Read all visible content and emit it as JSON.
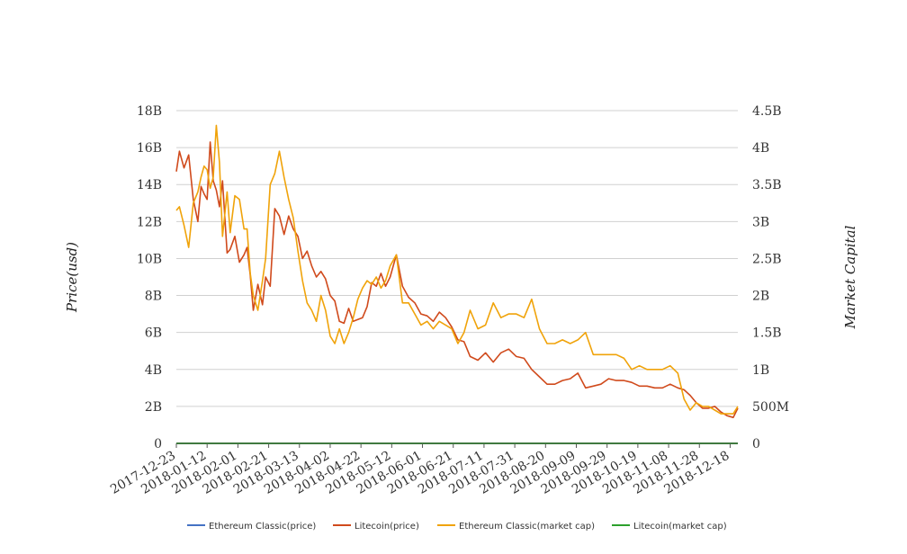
{
  "chart_data": {
    "type": "line",
    "y_left": {
      "label": "Price(usd)",
      "ylim": [
        0,
        18000000000
      ],
      "ticks": [
        {
          "value": 0,
          "label": "0"
        },
        {
          "value": 2000000000,
          "label": "2B"
        },
        {
          "value": 4000000000,
          "label": "4B"
        },
        {
          "value": 6000000000,
          "label": "6B"
        },
        {
          "value": 8000000000,
          "label": "8B"
        },
        {
          "value": 10000000000,
          "label": "10B"
        },
        {
          "value": 12000000000,
          "label": "12B"
        },
        {
          "value": 14000000000,
          "label": "14B"
        },
        {
          "value": 16000000000,
          "label": "16B"
        },
        {
          "value": 18000000000,
          "label": "18B"
        }
      ]
    },
    "y_right": {
      "label": "Market Capital",
      "ylim": [
        0,
        4500000000
      ],
      "ticks": [
        {
          "value": 0,
          "label": "0"
        },
        {
          "value": 500000000,
          "label": "500M"
        },
        {
          "value": 1000000000,
          "label": "1B"
        },
        {
          "value": 1500000000,
          "label": "1.5B"
        },
        {
          "value": 2000000000,
          "label": "2B"
        },
        {
          "value": 2500000000,
          "label": "2.5B"
        },
        {
          "value": 3000000000,
          "label": "3B"
        },
        {
          "value": 3500000000,
          "label": "3.5B"
        },
        {
          "value": 4000000000,
          "label": "4B"
        },
        {
          "value": 4500000000,
          "label": "4.5B"
        }
      ]
    },
    "x_axis": {
      "range": [
        "2017-12-23",
        "2018-12-23"
      ],
      "tick_labels": [
        "2017-12-23",
        "2018-01-12",
        "2018-02-01",
        "2018-02-21",
        "2018-03-13",
        "2018-04-02",
        "2018-04-22",
        "2018-05-12",
        "2018-06-01",
        "2018-06-21",
        "2018-07-11",
        "2018-07-31",
        "2018-08-20",
        "2018-09-09",
        "2018-09-29",
        "2018-10-19",
        "2018-11-08",
        "2018-11-28",
        "2018-12-18"
      ]
    },
    "grid": true,
    "legend_position": "bottom",
    "series": [
      {
        "name": "Ethereum Classic(price)",
        "axis": "left",
        "color": "#4472c4",
        "x": [
          "2017-12-23",
          "2018-12-23"
        ],
        "y": [
          28,
          6
        ]
      },
      {
        "name": "Litecoin(price)",
        "axis": "left",
        "color": "#d04a1c",
        "x": [
          "2017-12-23",
          "2017-12-25",
          "2017-12-28",
          "2017-12-31",
          "2018-01-03",
          "2018-01-06",
          "2018-01-08",
          "2018-01-10",
          "2018-01-12",
          "2018-01-14",
          "2018-01-16",
          "2018-01-18",
          "2018-01-20",
          "2018-01-22",
          "2018-01-25",
          "2018-01-27",
          "2018-01-30",
          "2018-02-02",
          "2018-02-05",
          "2018-02-07",
          "2018-02-09",
          "2018-02-11",
          "2018-02-14",
          "2018-02-17",
          "2018-02-19",
          "2018-02-22",
          "2018-02-25",
          "2018-02-28",
          "2018-03-03",
          "2018-03-06",
          "2018-03-09",
          "2018-03-12",
          "2018-03-15",
          "2018-03-18",
          "2018-03-21",
          "2018-03-24",
          "2018-03-27",
          "2018-03-30",
          "2018-04-02",
          "2018-04-05",
          "2018-04-08",
          "2018-04-11",
          "2018-04-14",
          "2018-04-17",
          "2018-04-20",
          "2018-04-23",
          "2018-04-26",
          "2018-04-29",
          "2018-05-02",
          "2018-05-05",
          "2018-05-08",
          "2018-05-11",
          "2018-05-15",
          "2018-05-19",
          "2018-05-23",
          "2018-05-27",
          "2018-05-31",
          "2018-06-04",
          "2018-06-08",
          "2018-06-12",
          "2018-06-16",
          "2018-06-20",
          "2018-06-24",
          "2018-06-28",
          "2018-07-02",
          "2018-07-07",
          "2018-07-12",
          "2018-07-17",
          "2018-07-22",
          "2018-07-27",
          "2018-08-01",
          "2018-08-06",
          "2018-08-11",
          "2018-08-16",
          "2018-08-21",
          "2018-08-26",
          "2018-08-31",
          "2018-09-05",
          "2018-09-10",
          "2018-09-15",
          "2018-09-20",
          "2018-09-25",
          "2018-09-30",
          "2018-10-05",
          "2018-10-10",
          "2018-10-15",
          "2018-10-20",
          "2018-10-25",
          "2018-10-30",
          "2018-11-04",
          "2018-11-09",
          "2018-11-14",
          "2018-11-18",
          "2018-11-22",
          "2018-11-26",
          "2018-11-30",
          "2018-12-04",
          "2018-12-08",
          "2018-12-12",
          "2018-12-16",
          "2018-12-20",
          "2018-12-23"
        ],
        "y": [
          14700000000,
          15800000000,
          14900000000,
          15600000000,
          13200000000,
          12000000000,
          13900000000,
          13500000000,
          13200000000,
          16300000000,
          14200000000,
          13700000000,
          12800000000,
          14200000000,
          10300000000,
          10500000000,
          11200000000,
          9800000000,
          10200000000,
          10600000000,
          9100000000,
          7200000000,
          8600000000,
          7500000000,
          9000000000,
          8500000000,
          12700000000,
          12300000000,
          11300000000,
          12300000000,
          11600000000,
          11200000000,
          10000000000,
          10400000000,
          9600000000,
          9000000000,
          9300000000,
          8900000000,
          8000000000,
          7700000000,
          6600000000,
          6500000000,
          7300000000,
          6600000000,
          6700000000,
          6800000000,
          7400000000,
          8700000000,
          8500000000,
          9200000000,
          8500000000,
          9000000000,
          10200000000,
          8500000000,
          7900000000,
          7600000000,
          7000000000,
          6900000000,
          6600000000,
          7100000000,
          6800000000,
          6300000000,
          5600000000,
          5500000000,
          4700000000,
          4500000000,
          4900000000,
          4400000000,
          4900000000,
          5100000000,
          4700000000,
          4600000000,
          4000000000,
          3600000000,
          3200000000,
          3200000000,
          3400000000,
          3500000000,
          3800000000,
          3000000000,
          3100000000,
          3200000000,
          3500000000,
          3400000000,
          3400000000,
          3300000000,
          3100000000,
          3100000000,
          3000000000,
          3000000000,
          3200000000,
          3000000000,
          2900000000,
          2600000000,
          2200000000,
          1900000000,
          1900000000,
          2000000000,
          1700000000,
          1500000000,
          1400000000,
          1900000000
        ]
      },
      {
        "name": "Ethereum Classic(market cap)",
        "axis": "right",
        "color": "#f0a30a",
        "x": [
          "2017-12-23",
          "2017-12-25",
          "2017-12-28",
          "2017-12-31",
          "2018-01-03",
          "2018-01-06",
          "2018-01-08",
          "2018-01-10",
          "2018-01-12",
          "2018-01-14",
          "2018-01-16",
          "2018-01-18",
          "2018-01-20",
          "2018-01-22",
          "2018-01-25",
          "2018-01-27",
          "2018-01-30",
          "2018-02-02",
          "2018-02-05",
          "2018-02-07",
          "2018-02-09",
          "2018-02-11",
          "2018-02-14",
          "2018-02-17",
          "2018-02-19",
          "2018-02-22",
          "2018-02-25",
          "2018-02-28",
          "2018-03-03",
          "2018-03-06",
          "2018-03-09",
          "2018-03-12",
          "2018-03-15",
          "2018-03-18",
          "2018-03-21",
          "2018-03-24",
          "2018-03-27",
          "2018-03-30",
          "2018-04-02",
          "2018-04-05",
          "2018-04-08",
          "2018-04-11",
          "2018-04-14",
          "2018-04-17",
          "2018-04-20",
          "2018-04-23",
          "2018-04-26",
          "2018-04-29",
          "2018-05-02",
          "2018-05-05",
          "2018-05-08",
          "2018-05-11",
          "2018-05-15",
          "2018-05-19",
          "2018-05-23",
          "2018-05-27",
          "2018-05-31",
          "2018-06-04",
          "2018-06-08",
          "2018-06-12",
          "2018-06-16",
          "2018-06-20",
          "2018-06-24",
          "2018-06-28",
          "2018-07-02",
          "2018-07-07",
          "2018-07-12",
          "2018-07-17",
          "2018-07-22",
          "2018-07-27",
          "2018-08-01",
          "2018-08-06",
          "2018-08-11",
          "2018-08-16",
          "2018-08-21",
          "2018-08-26",
          "2018-08-31",
          "2018-09-05",
          "2018-09-10",
          "2018-09-15",
          "2018-09-20",
          "2018-09-25",
          "2018-09-30",
          "2018-10-05",
          "2018-10-10",
          "2018-10-15",
          "2018-10-20",
          "2018-10-25",
          "2018-10-30",
          "2018-11-04",
          "2018-11-09",
          "2018-11-14",
          "2018-11-18",
          "2018-11-22",
          "2018-11-26",
          "2018-11-30",
          "2018-12-04",
          "2018-12-08",
          "2018-12-12",
          "2018-12-16",
          "2018-12-20",
          "2018-12-23"
        ],
        "y": [
          3150000000,
          3200000000,
          2950000000,
          2650000000,
          3250000000,
          3400000000,
          3600000000,
          3750000000,
          3700000000,
          3450000000,
          3600000000,
          4300000000,
          3800000000,
          2800000000,
          3400000000,
          2850000000,
          3350000000,
          3300000000,
          2900000000,
          2900000000,
          2300000000,
          2000000000,
          1800000000,
          2200000000,
          2500000000,
          3500000000,
          3650000000,
          3950000000,
          3600000000,
          3300000000,
          3050000000,
          2600000000,
          2200000000,
          1900000000,
          1800000000,
          1650000000,
          2000000000,
          1800000000,
          1450000000,
          1350000000,
          1550000000,
          1350000000,
          1500000000,
          1700000000,
          1950000000,
          2100000000,
          2200000000,
          2150000000,
          2250000000,
          2100000000,
          2200000000,
          2400000000,
          2550000000,
          1900000000,
          1900000000,
          1750000000,
          1600000000,
          1650000000,
          1550000000,
          1650000000,
          1600000000,
          1550000000,
          1350000000,
          1500000000,
          1800000000,
          1550000000,
          1600000000,
          1900000000,
          1700000000,
          1750000000,
          1750000000,
          1700000000,
          1950000000,
          1550000000,
          1350000000,
          1350000000,
          1400000000,
          1350000000,
          1400000000,
          1500000000,
          1200000000,
          1200000000,
          1200000000,
          1200000000,
          1150000000,
          1000000000,
          1050000000,
          1000000000,
          1000000000,
          1000000000,
          1050000000,
          950000000,
          600000000,
          450000000,
          550000000,
          500000000,
          500000000,
          450000000,
          400000000,
          400000000,
          400000000,
          500000000
        ]
      },
      {
        "name": "Litecoin(market cap)",
        "axis": "right",
        "color": "#2ca02c",
        "x": [
          "2017-12-23",
          "2018-12-23"
        ],
        "y": [
          4,
          2
        ]
      }
    ]
  }
}
